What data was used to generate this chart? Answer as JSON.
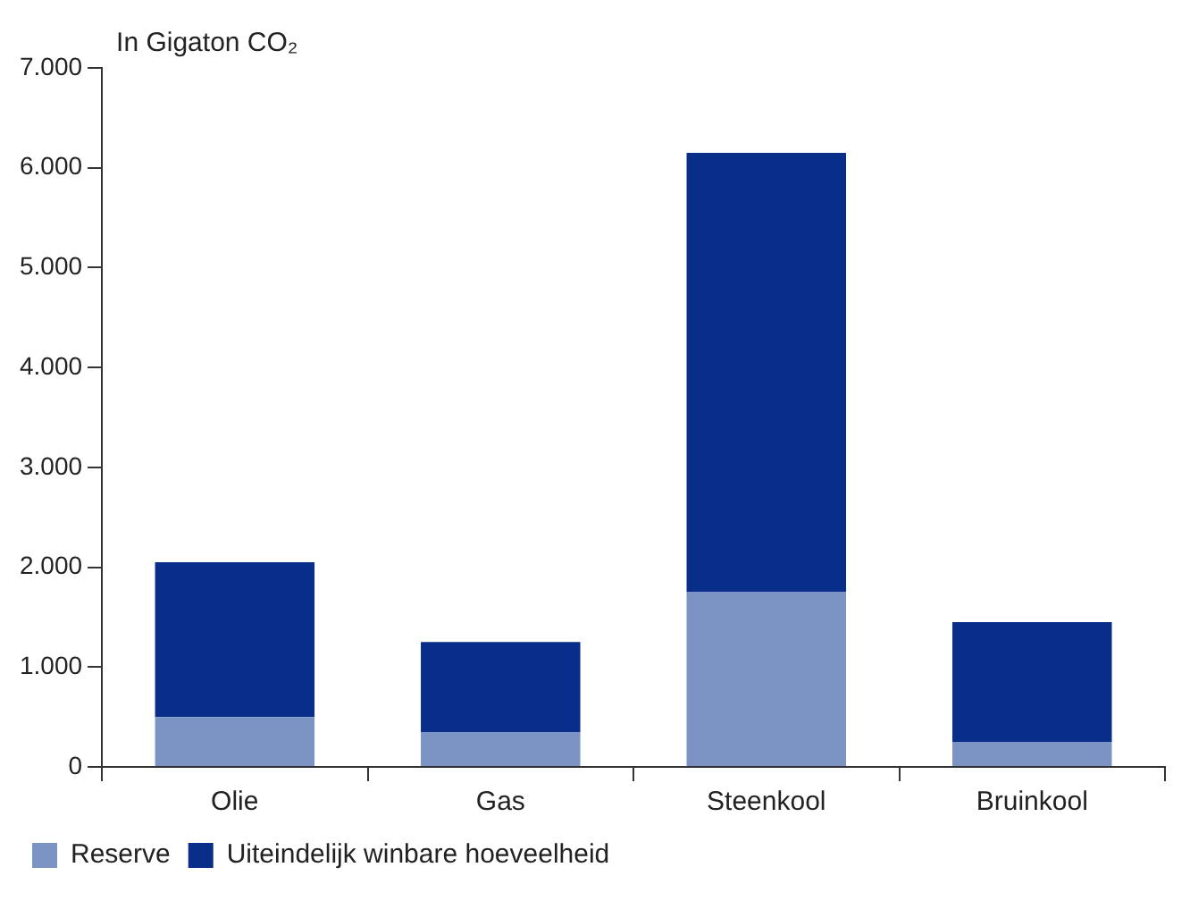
{
  "chart_data": {
    "type": "bar",
    "ylabel": "In Gigaton CO₂",
    "categories": [
      "Olie",
      "Gas",
      "Steenkool",
      "Bruinkool"
    ],
    "stacked": true,
    "series": [
      {
        "name": "Reserve",
        "color": "#7b94c4",
        "values": [
          500,
          350,
          1750,
          250
        ]
      },
      {
        "name": "Uiteindelijk winbare hoeveelheid",
        "color": "#082e8a",
        "values": [
          1550,
          900,
          4400,
          1200
        ]
      }
    ],
    "ylim": [
      0,
      7000
    ],
    "yticks": [
      0,
      {
        "value": 1000,
        "label": "1.000"
      },
      {
        "value": 2000,
        "label": "2.000"
      },
      {
        "value": 3000,
        "label": "3.000"
      },
      {
        "value": 4000,
        "label": "4.000"
      },
      {
        "value": 5000,
        "label": "5.000"
      },
      {
        "value": 6000,
        "label": "6.000"
      },
      {
        "value": 7000,
        "label": "7.000"
      }
    ],
    "grid": false,
    "legend": "bottom left"
  }
}
